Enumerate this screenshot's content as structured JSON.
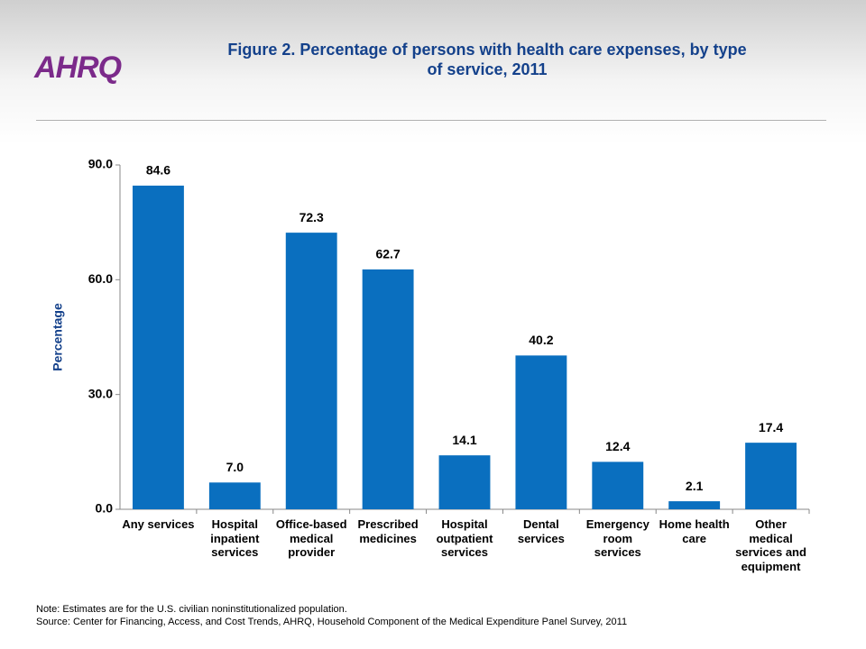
{
  "logo": "AHRQ",
  "chart_data": {
    "type": "bar",
    "title": "Figure 2. Percentage of persons with health care expenses, by type of service, 2011",
    "y_label": "Percentage",
    "categories": [
      "Any services",
      "Hospital inpatient services",
      "Office-based medical provider",
      "Prescribed medicines",
      "Hospital outpatient services",
      "Dental services",
      "Emergency room services",
      "Home health care",
      "Other medical services and equipment"
    ],
    "values": [
      84.6,
      7.0,
      72.3,
      62.7,
      14.1,
      40.2,
      12.4,
      2.1,
      17.4
    ],
    "value_labels": [
      "84.6",
      "7.0",
      "72.3",
      "62.7",
      "14.1",
      "40.2",
      "12.4",
      "2.1",
      "17.4"
    ],
    "color": "#0a6fbf",
    "ylim": [
      0,
      90
    ],
    "yticks": [
      {
        "value": 0,
        "label": "0.0"
      },
      {
        "value": 30,
        "label": "30.0"
      },
      {
        "value": 60,
        "label": "60.0"
      },
      {
        "value": 90,
        "label": "90.0"
      }
    ],
    "grid": false,
    "note": "Note: Estimates are for the U.S. civilian noninstitutionalized population.",
    "source": "Source: Center for Financing, Access, and Cost Trends, AHRQ, Household Component of the Medical Expenditure Panel Survey,  2011"
  }
}
